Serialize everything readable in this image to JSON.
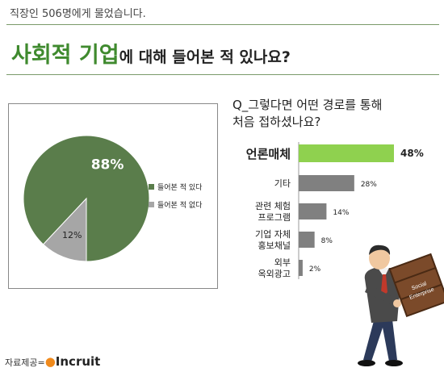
{
  "header": {
    "subtitle": "직장인 506명에게 물었습니다.",
    "title_accent": "사회적 기업",
    "title_rest": "에 대해 들어본 적 있나요?"
  },
  "question": {
    "line1": "Q_그렇다면 어떤 경로를 통해",
    "line2": "처음 접하셨나요?"
  },
  "source": {
    "label": "자료제공=",
    "brand": "Incruit"
  },
  "illustration": {
    "box_text_1": "Social",
    "box_text_2": "Enterprise"
  },
  "colors": {
    "pie_main": "#5a7d4b",
    "pie_minor": "#a6a6a6",
    "bar_highlight": "#8fd14f",
    "bar_gray": "#808080",
    "accent_green": "#3f8a2e"
  },
  "chart_data": [
    {
      "type": "pie",
      "slices": [
        {
          "label": "들어본 적 있다",
          "value": 88,
          "display": "88%"
        },
        {
          "label": "들어본 적 없다",
          "value": 12,
          "display": "12%"
        }
      ],
      "legend_position": "right"
    },
    {
      "type": "bar",
      "orientation": "horizontal",
      "categories": [
        [
          "언론매체"
        ],
        [
          "기타"
        ],
        [
          "관련 체험",
          "프로그램"
        ],
        [
          "기업 자체",
          "홍보채널"
        ],
        [
          "외부",
          "옥외광고"
        ]
      ],
      "values": [
        48,
        28,
        14,
        8,
        2
      ],
      "value_labels": [
        "48%",
        "28%",
        "14%",
        "8%",
        "2%"
      ],
      "highlight_index": 0
    }
  ]
}
